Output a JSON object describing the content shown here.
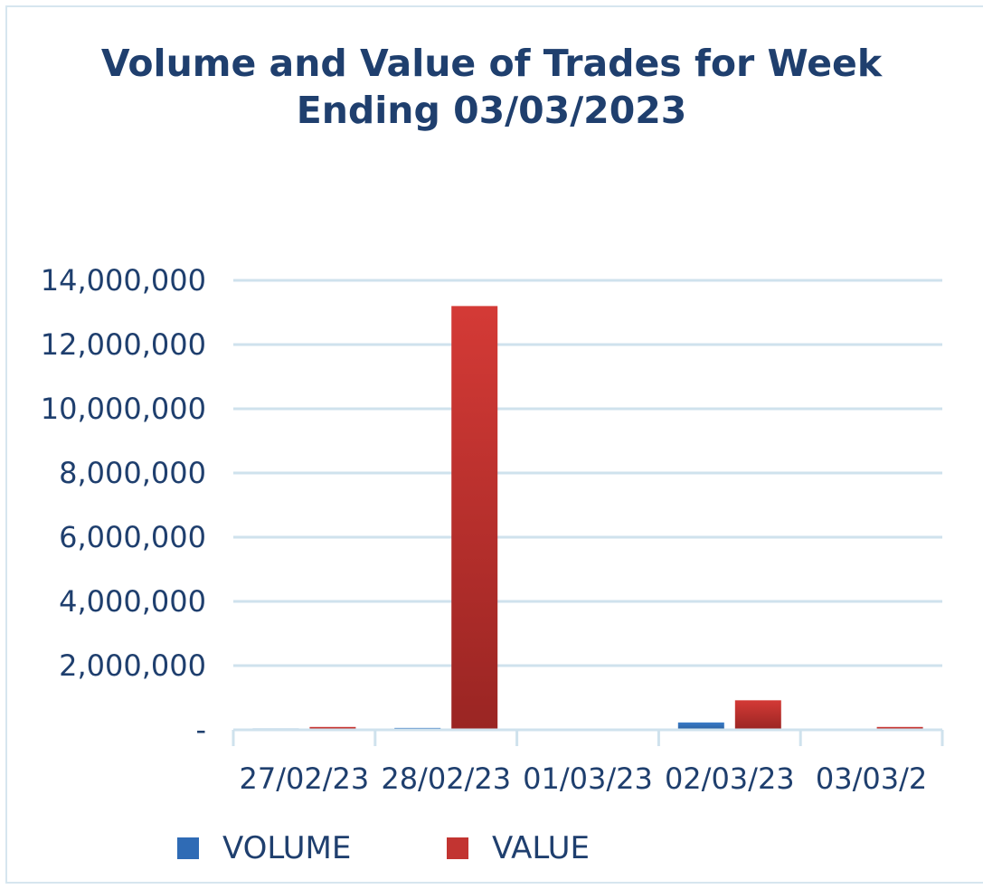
{
  "chart_data": {
    "type": "bar",
    "title_lines": [
      "Volume and Value of Trades for Week",
      "Ending 03/03/2023"
    ],
    "categories": [
      "27/02/23",
      "28/02/23",
      "01/03/23",
      "02/03/23",
      "03/03/2"
    ],
    "series": [
      {
        "name": "VOLUME",
        "color": "#2f6bb5",
        "values": [
          45000,
          60000,
          30000,
          230000,
          35000
        ]
      },
      {
        "name": "VALUE",
        "color": "#c23431",
        "values": [
          90000,
          13200000,
          5000,
          920000,
          90000
        ]
      }
    ],
    "yticks": [
      {
        "value": 0,
        "label": "-"
      },
      {
        "value": 2000000,
        "label": "2,000,000"
      },
      {
        "value": 4000000,
        "label": "4,000,000"
      },
      {
        "value": 6000000,
        "label": "6,000,000"
      },
      {
        "value": 8000000,
        "label": "8,000,000"
      },
      {
        "value": 10000000,
        "label": "10,000,000"
      },
      {
        "value": 12000000,
        "label": "12,000,000"
      },
      {
        "value": 14000000,
        "label": "14,000,000"
      }
    ],
    "ylim": [
      0,
      14000000
    ],
    "grid": true,
    "legend_position": "bottom",
    "colors": {
      "grid": "#cfe2ed",
      "text": "#1f3f6e"
    }
  }
}
